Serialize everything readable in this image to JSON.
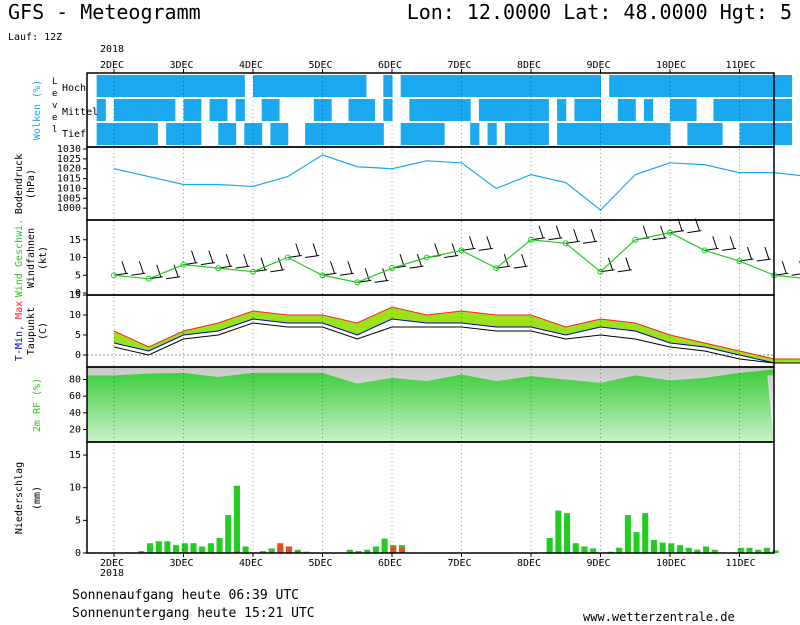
{
  "header": {
    "title_left": "GFS - Meteogramm",
    "title_right": "Lon: 12.0000 Lat: 48.0000 Hgt: 5",
    "run": "Lauf: 12Z",
    "year_top": "2018",
    "year_bottom": "2018"
  },
  "footer": {
    "sunrise": "Sonnenaufgang heute 06:39 UTC",
    "sunset": "Sonnenuntergang heute 15:21 UTC",
    "site": "www.wetterzentrale.de"
  },
  "colors": {
    "cloud": "#1aa8f0",
    "pressure_line": "#1aa8f0",
    "wind": "#22cc22",
    "tmin": "#0000cc",
    "tmax": "#ff2222",
    "dewpoint": "#000000",
    "rh": "#22cc22",
    "rain": "#22cc22",
    "snow_mix": "#e05020"
  },
  "chart_data": [
    {
      "type": "heatmap",
      "ylabel": "Wolken (%)",
      "yaxis_title": "Level",
      "levels": [
        "Hoch",
        "Mittel",
        "Tief"
      ],
      "days": [
        "2DEC",
        "3DEC",
        "4DEC",
        "5DEC",
        "6DEC",
        "7DEC",
        "8DEC",
        "9DEC",
        "10DEC",
        "11DEC"
      ],
      "steps_per_day": 8,
      "cover": {
        "Hoch": [
          0,
          1,
          1,
          1,
          1,
          1,
          1,
          1,
          1,
          1,
          1,
          1,
          1,
          1,
          1,
          1,
          1,
          1,
          0,
          1,
          1,
          1,
          1,
          1,
          1,
          1,
          1,
          1,
          1,
          1,
          1,
          1,
          0,
          0,
          1,
          0,
          1,
          1,
          1,
          1,
          1,
          1,
          1,
          1,
          1,
          1,
          1,
          1,
          1,
          1,
          1,
          1,
          1,
          1,
          1,
          1,
          1,
          1,
          1,
          0,
          1,
          1,
          1,
          1,
          1,
          1,
          1,
          1,
          1,
          1,
          1,
          1,
          1,
          1,
          1,
          1,
          1,
          1,
          1,
          1,
          1
        ],
        "Mittel": [
          0,
          1,
          0,
          1,
          1,
          1,
          1,
          1,
          1,
          1,
          0,
          1,
          1,
          0,
          1,
          1,
          0,
          1,
          0,
          0,
          1,
          1,
          0,
          0,
          0,
          0,
          1,
          1,
          0,
          0,
          1,
          1,
          1,
          0,
          1,
          0,
          0,
          1,
          1,
          1,
          1,
          1,
          1,
          1,
          0,
          1,
          1,
          1,
          1,
          1,
          1,
          1,
          1,
          0,
          1,
          0,
          1,
          1,
          1,
          0,
          0,
          1,
          1,
          0,
          1,
          0,
          0,
          1,
          1,
          1,
          0,
          0,
          1,
          1,
          1,
          1,
          1,
          1,
          1,
          1,
          1
        ],
        "Tief": [
          0,
          1,
          1,
          1,
          1,
          1,
          1,
          1,
          0,
          1,
          1,
          1,
          1,
          0,
          0,
          1,
          1,
          0,
          1,
          1,
          0,
          1,
          1,
          0,
          0,
          1,
          1,
          1,
          1,
          1,
          1,
          1,
          1,
          1,
          0,
          0,
          1,
          1,
          1,
          1,
          1,
          0,
          0,
          0,
          1,
          0,
          1,
          0,
          1,
          1,
          1,
          1,
          1,
          0,
          1,
          1,
          1,
          1,
          1,
          1,
          1,
          1,
          1,
          1,
          1,
          1,
          1,
          0,
          0,
          1,
          1,
          1,
          1,
          0,
          0,
          1,
          1,
          1,
          1,
          1,
          1
        ]
      }
    },
    {
      "type": "line",
      "ylabel": "Bodendruck (hPa)",
      "ylim": [
        995,
        1030
      ],
      "yticks": [
        1000,
        1005,
        1010,
        1015,
        1020,
        1025,
        1030
      ],
      "x_days": [
        0,
        0.5,
        1,
        1.5,
        2,
        2.5,
        3,
        3.5,
        4,
        4.5,
        5,
        5.5,
        6,
        6.5,
        7,
        7.5,
        8,
        8.5,
        9,
        9.5,
        10
      ],
      "values": [
        1020,
        1016,
        1012,
        1012,
        1011,
        1016,
        1027,
        1021,
        1020,
        1024,
        1023,
        1010,
        1017,
        1013,
        999,
        1017,
        1023,
        1022,
        1018,
        1018,
        1016
      ]
    },
    {
      "type": "line",
      "ylabel": "Wind Geschwi. Windfahnen (kt)",
      "ylim": [
        0,
        20
      ],
      "yticks": [
        0,
        5,
        10,
        15
      ],
      "x_days": [
        0,
        0.5,
        1,
        1.5,
        2,
        2.5,
        3,
        3.5,
        4,
        4.5,
        5,
        5.5,
        6,
        6.5,
        7,
        7.5,
        8,
        8.5,
        9,
        9.5,
        10
      ],
      "values": [
        5,
        4,
        8,
        7,
        6,
        10,
        5,
        3,
        7,
        10,
        12,
        7,
        15,
        14,
        6,
        15,
        17,
        12,
        9,
        5,
        4
      ]
    },
    {
      "type": "area",
      "ylabel": "T-Min, Max Taupunkt (C)",
      "ylim": [
        -3,
        15
      ],
      "yticks": [
        -5,
        0,
        5,
        10,
        15
      ],
      "x_days": [
        0,
        0.5,
        1,
        1.5,
        2,
        2.5,
        3,
        3.5,
        4,
        4.5,
        5,
        5.5,
        6,
        6.5,
        7,
        7.5,
        8,
        8.5,
        9,
        9.5,
        10
      ],
      "series": [
        {
          "name": "T-Max",
          "values": [
            6,
            2,
            6,
            8,
            11,
            10,
            10,
            8,
            12,
            10,
            11,
            10,
            10,
            7,
            9,
            8,
            5,
            3,
            1,
            -1,
            -1
          ]
        },
        {
          "name": "T-Min",
          "values": [
            3,
            1,
            5,
            6,
            9,
            8,
            8,
            5,
            9,
            8,
            8,
            7,
            7,
            5,
            7,
            6,
            3,
            2,
            0,
            -2,
            -2
          ]
        },
        {
          "name": "Taupunkt",
          "values": [
            2,
            0,
            4,
            5,
            8,
            7,
            7,
            4,
            7,
            7,
            7,
            6,
            6,
            4,
            5,
            4,
            2,
            1,
            -1,
            -2,
            -2
          ]
        }
      ]
    },
    {
      "type": "area",
      "ylabel": "2m RF (%)",
      "ylim": [
        5,
        95
      ],
      "yticks": [
        20,
        40,
        60,
        80
      ],
      "x_days": [
        0,
        0.5,
        1,
        1.5,
        2,
        2.5,
        3,
        3.5,
        4,
        4.5,
        5,
        5.5,
        6,
        6.5,
        7,
        7.5,
        8,
        8.5,
        9,
        9.5,
        10
      ],
      "values": [
        85,
        87,
        88,
        83,
        88,
        88,
        88,
        75,
        82,
        78,
        86,
        78,
        84,
        80,
        76,
        85,
        79,
        82,
        88,
        92,
        85
      ]
    },
    {
      "type": "bar",
      "ylabel": "Niederschlag (mm)",
      "ylim": [
        0,
        17
      ],
      "yticks": [
        0,
        5,
        10,
        15
      ],
      "x_days_start": 0,
      "step_days": 0.125,
      "rain": [
        0,
        0,
        0,
        0,
        0,
        0,
        0.3,
        1.5,
        1.8,
        1.8,
        1.2,
        1.5,
        1.5,
        1,
        1.5,
        2.3,
        5.8,
        10.3,
        1,
        0,
        0.3,
        0.7,
        1,
        1,
        0.5,
        0,
        0,
        0,
        0,
        0,
        0.5,
        0.3,
        0.5,
        1,
        2.2,
        1.2,
        1.2,
        0,
        0,
        0,
        0,
        0,
        0,
        0,
        0,
        0,
        0,
        0,
        0,
        0,
        0,
        0,
        0,
        2.3,
        6.5,
        6.1,
        1.5,
        1,
        0.7,
        0,
        0.2,
        0.8,
        5.8,
        3.2,
        6.1,
        2,
        1.6,
        1.5,
        1.2,
        0.8,
        0.5,
        1,
        0.5,
        0,
        0,
        0.8,
        0.8,
        0.5,
        0.8,
        0.4,
        0.3,
        0.2,
        0.3,
        0.2,
        0.3
      ],
      "mix": [
        0,
        0,
        0,
        0,
        0,
        0,
        0,
        0,
        0,
        0,
        0,
        0,
        0,
        0,
        0,
        0,
        0,
        0.3,
        0,
        0,
        0,
        0.2,
        1.5,
        1,
        0.3,
        0.2,
        0,
        0,
        0,
        0,
        0,
        0,
        0,
        0,
        0,
        1,
        0.8,
        0,
        0,
        0,
        0,
        0,
        0,
        0,
        0,
        0,
        0,
        0,
        0,
        0,
        0,
        0,
        0,
        0,
        0,
        0,
        0,
        0,
        0,
        0,
        0,
        0,
        0,
        0,
        0,
        0,
        0,
        0,
        0,
        0,
        0,
        0,
        0,
        0,
        0,
        0,
        0,
        0,
        0,
        0,
        0,
        0,
        0,
        0,
        0
      ]
    }
  ]
}
